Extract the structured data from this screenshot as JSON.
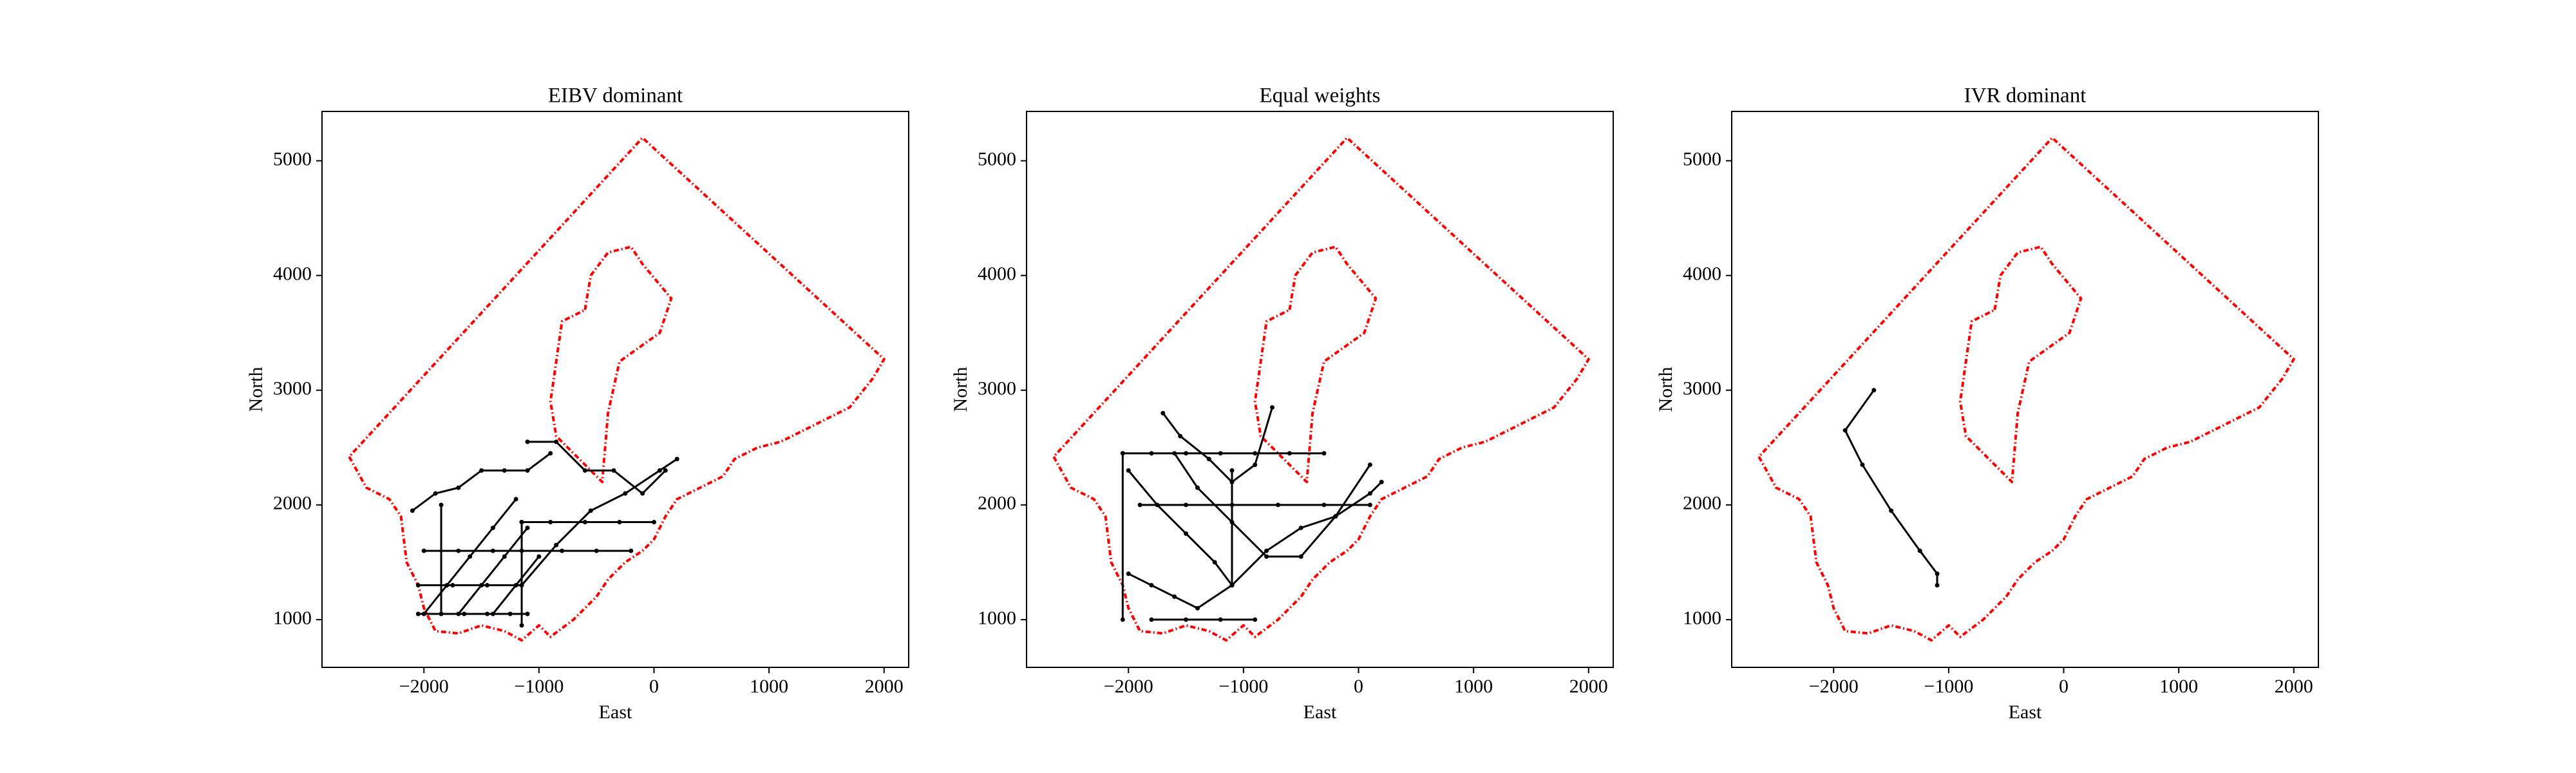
{
  "chart_data": [
    {
      "type": "line",
      "title": "EIBV dominant",
      "xlabel": "East",
      "ylabel": "North",
      "xlim": [
        -2886,
        2214
      ],
      "ylim": [
        584,
        5430
      ],
      "xticks": [
        {
          "value": -2000,
          "label": "−2000"
        },
        {
          "value": -1000,
          "label": "−1000"
        },
        0,
        1000,
        2000
      ],
      "yticks": [
        1000,
        2000,
        3000,
        4000,
        5000
      ],
      "boundary": {
        "color": "#ff0000",
        "x": [
          -2650,
          -2500,
          -2300,
          -2200,
          -2150,
          -2050,
          -2000,
          -1900,
          -1700,
          -1500,
          -1300,
          -1150,
          -1000,
          -900,
          -700,
          -500,
          -400,
          -250,
          -100,
          0,
          100,
          200,
          400,
          600,
          700,
          900,
          1100,
          1300,
          1500,
          1700,
          1900,
          2000,
          -100,
          -2650
        ],
        "y": [
          2420,
          2150,
          2050,
          1900,
          1500,
          1300,
          1100,
          900,
          880,
          950,
          900,
          820,
          950,
          850,
          1000,
          1200,
          1350,
          1500,
          1600,
          1700,
          1900,
          2050,
          2150,
          2250,
          2400,
          2500,
          2550,
          2650,
          2750,
          2850,
          3100,
          3270,
          5200,
          2420
        ]
      },
      "obstacle": {
        "color": "#ff0000",
        "x": [
          -600,
          -550,
          -400,
          -200,
          -100,
          150,
          50,
          -300,
          -400,
          -450,
          -600,
          -850,
          -900,
          -850,
          -800,
          -600
        ],
        "y": [
          3700,
          4000,
          4200,
          4250,
          4100,
          3800,
          3500,
          3250,
          2800,
          2200,
          2350,
          2600,
          2900,
          3250,
          3600,
          3700
        ]
      },
      "paths": {
        "color": "#000000",
        "lines": [
          {
            "x": [
              -2050,
              -1850,
              -1650,
              -1450,
              -1250,
              -1100
            ],
            "y": [
              1050,
              1050,
              1050,
              1050,
              1050,
              1050
            ]
          },
          {
            "x": [
              -2050,
              -1750,
              -1450,
              -1150
            ],
            "y": [
              1300,
              1300,
              1300,
              1300
            ]
          },
          {
            "x": [
              -2000,
              -1700,
              -1400,
              -1150,
              -800,
              -500,
              -200
            ],
            "y": [
              1600,
              1600,
              1600,
              1600,
              1600,
              1600,
              1600
            ]
          },
          {
            "x": [
              -1150,
              -900,
              -600,
              -300,
              0
            ],
            "y": [
              1850,
              1850,
              1850,
              1850,
              1850
            ]
          },
          {
            "x": [
              -2000,
              -1800,
              -1600,
              -1400,
              -1200
            ],
            "y": [
              1050,
              1300,
              1550,
              1800,
              2050
            ]
          },
          {
            "x": [
              -1700,
              -1500,
              -1300,
              -1100
            ],
            "y": [
              1050,
              1300,
              1550,
              1800
            ]
          },
          {
            "x": [
              -1400,
              -1200,
              -1000
            ],
            "y": [
              1050,
              1300,
              1550
            ]
          },
          {
            "x": [
              -1150,
              -850,
              -550,
              -250,
              50,
              200
            ],
            "y": [
              1300,
              1650,
              1950,
              2100,
              2300,
              2400
            ]
          },
          {
            "x": [
              -2100,
              -1900,
              -1700,
              -1500,
              -1300,
              -1100,
              -900
            ],
            "y": [
              1950,
              2100,
              2150,
              2300,
              2300,
              2300,
              2450
            ]
          },
          {
            "x": [
              -1100,
              -850,
              -600,
              -350,
              -100,
              100
            ],
            "y": [
              2550,
              2550,
              2300,
              2300,
              2100,
              2300
            ]
          },
          {
            "x": [
              -1150,
              -1150
            ],
            "y": [
              950,
              1850
            ]
          },
          {
            "x": [
              -1850,
              -1850
            ],
            "y": [
              1050,
              2000
            ]
          }
        ]
      }
    },
    {
      "type": "line",
      "title": "Equal weights",
      "xlabel": "East",
      "ylabel": "North",
      "xlim": [
        -2886,
        2214
      ],
      "ylim": [
        584,
        5430
      ],
      "xticks": [
        {
          "value": -2000,
          "label": "−2000"
        },
        {
          "value": -1000,
          "label": "−1000"
        },
        0,
        1000,
        2000
      ],
      "yticks": [
        1000,
        2000,
        3000,
        4000,
        5000
      ],
      "boundary": {
        "color": "#ff0000",
        "x": [
          -2650,
          -2500,
          -2300,
          -2200,
          -2150,
          -2050,
          -2000,
          -1900,
          -1700,
          -1500,
          -1300,
          -1150,
          -1000,
          -900,
          -700,
          -500,
          -400,
          -250,
          -100,
          0,
          100,
          200,
          400,
          600,
          700,
          900,
          1100,
          1300,
          1500,
          1700,
          1900,
          2000,
          -100,
          -2650
        ],
        "y": [
          2420,
          2150,
          2050,
          1900,
          1500,
          1300,
          1100,
          900,
          880,
          950,
          900,
          820,
          950,
          850,
          1000,
          1200,
          1350,
          1500,
          1600,
          1700,
          1900,
          2050,
          2150,
          2250,
          2400,
          2500,
          2550,
          2650,
          2750,
          2850,
          3100,
          3270,
          5200,
          2420
        ]
      },
      "obstacle": {
        "color": "#ff0000",
        "x": [
          -600,
          -550,
          -400,
          -200,
          -100,
          150,
          50,
          -300,
          -400,
          -450,
          -600,
          -850,
          -900,
          -850,
          -800,
          -600
        ],
        "y": [
          3700,
          4000,
          4200,
          4250,
          4100,
          3800,
          3500,
          3250,
          2800,
          2200,
          2350,
          2600,
          2900,
          3250,
          3600,
          3700
        ]
      },
      "paths": {
        "color": "#000000",
        "lines": [
          {
            "x": [
              -1800,
              -1500,
              -1200,
              -900
            ],
            "y": [
              1000,
              1000,
              1000,
              1000
            ]
          },
          {
            "x": [
              -2000,
              -1800,
              -1600,
              -1400,
              -1100
            ],
            "y": [
              1400,
              1300,
              1200,
              1100,
              1300
            ]
          },
          {
            "x": [
              -2050,
              -1800,
              -1500,
              -1200,
              -900,
              -600,
              -300
            ],
            "y": [
              2450,
              2450,
              2450,
              2450,
              2450,
              2450,
              2450
            ]
          },
          {
            "x": [
              -1600,
              -1400,
              -1100,
              -800,
              -500,
              -200,
              100
            ],
            "y": [
              2450,
              2150,
              1850,
              1550,
              1550,
              1900,
              2350
            ]
          },
          {
            "x": [
              -2000,
              -1750,
              -1500,
              -1250,
              -1100
            ],
            "y": [
              2300,
              2000,
              1750,
              1500,
              1300
            ]
          },
          {
            "x": [
              -1100,
              -800,
              -500,
              -200,
              100,
              200
            ],
            "y": [
              1300,
              1600,
              1800,
              1900,
              2100,
              2200
            ]
          },
          {
            "x": [
              -1700,
              -1550,
              -1300,
              -1100,
              -900,
              -750
            ],
            "y": [
              2800,
              2600,
              2400,
              2200,
              2350,
              2850
            ]
          },
          {
            "x": [
              -2050,
              -2050
            ],
            "y": [
              2450,
              1000
            ]
          },
          {
            "x": [
              -1100,
              -1100
            ],
            "y": [
              1300,
              2300
            ]
          },
          {
            "x": [
              -1900,
              -1500,
              -1100,
              -700,
              -300,
              100
            ],
            "y": [
              2000,
              2000,
              2000,
              2000,
              2000,
              2000
            ]
          }
        ]
      }
    },
    {
      "type": "line",
      "title": "IVR dominant",
      "xlabel": "East",
      "ylabel": "North",
      "xlim": [
        -2886,
        2214
      ],
      "ylim": [
        584,
        5430
      ],
      "xticks": [
        {
          "value": -2000,
          "label": "−2000"
        },
        {
          "value": -1000,
          "label": "−1000"
        },
        0,
        1000,
        2000
      ],
      "yticks": [
        1000,
        2000,
        3000,
        4000,
        5000
      ],
      "boundary": {
        "color": "#ff0000",
        "x": [
          -2650,
          -2500,
          -2300,
          -2200,
          -2150,
          -2050,
          -2000,
          -1900,
          -1700,
          -1500,
          -1300,
          -1150,
          -1000,
          -900,
          -700,
          -500,
          -400,
          -250,
          -100,
          0,
          100,
          200,
          400,
          600,
          700,
          900,
          1100,
          1300,
          1500,
          1700,
          1900,
          2000,
          -100,
          -2650
        ],
        "y": [
          2420,
          2150,
          2050,
          1900,
          1500,
          1300,
          1100,
          900,
          880,
          950,
          900,
          820,
          950,
          850,
          1000,
          1200,
          1350,
          1500,
          1600,
          1700,
          1900,
          2050,
          2150,
          2250,
          2400,
          2500,
          2550,
          2650,
          2750,
          2850,
          3100,
          3270,
          5200,
          2420
        ]
      },
      "obstacle": {
        "color": "#ff0000",
        "x": [
          -600,
          -550,
          -400,
          -200,
          -100,
          150,
          50,
          -300,
          -400,
          -450,
          -600,
          -850,
          -900,
          -850,
          -800,
          -600
        ],
        "y": [
          3700,
          4000,
          4200,
          4250,
          4100,
          3800,
          3500,
          3250,
          2800,
          2200,
          2350,
          2600,
          2900,
          3250,
          3600,
          3700
        ]
      },
      "paths": {
        "color": "#000000",
        "lines": [
          {
            "x": [
              -1650,
              -1900,
              -1750,
              -1500,
              -1250,
              -1100,
              -1100
            ],
            "y": [
              3000,
              2650,
              2350,
              1950,
              1600,
              1400,
              1300
            ]
          }
        ]
      }
    }
  ]
}
